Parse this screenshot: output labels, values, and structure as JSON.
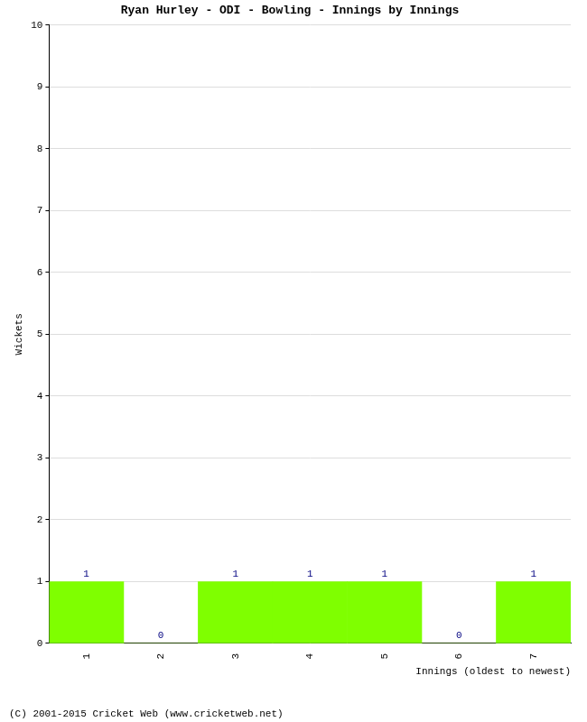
{
  "chart_data": {
    "type": "bar",
    "title": "Ryan Hurley - ODI - Bowling - Innings by Innings",
    "x_label": "Innings (oldest to newest)",
    "y_label": "Wickets",
    "footer": "(C) 2001-2015 Cricket Web (www.cricketweb.net)",
    "categories": [
      "1",
      "2",
      "3",
      "4",
      "5",
      "6",
      "7"
    ],
    "values": [
      1,
      0,
      1,
      1,
      1,
      0,
      1
    ],
    "color": "#7fff00",
    "ylim": [
      0,
      10
    ],
    "yticks": [
      0,
      1,
      2,
      3,
      4,
      5,
      6,
      7,
      8,
      9,
      10
    ],
    "grid": true,
    "data_labels": true
  }
}
